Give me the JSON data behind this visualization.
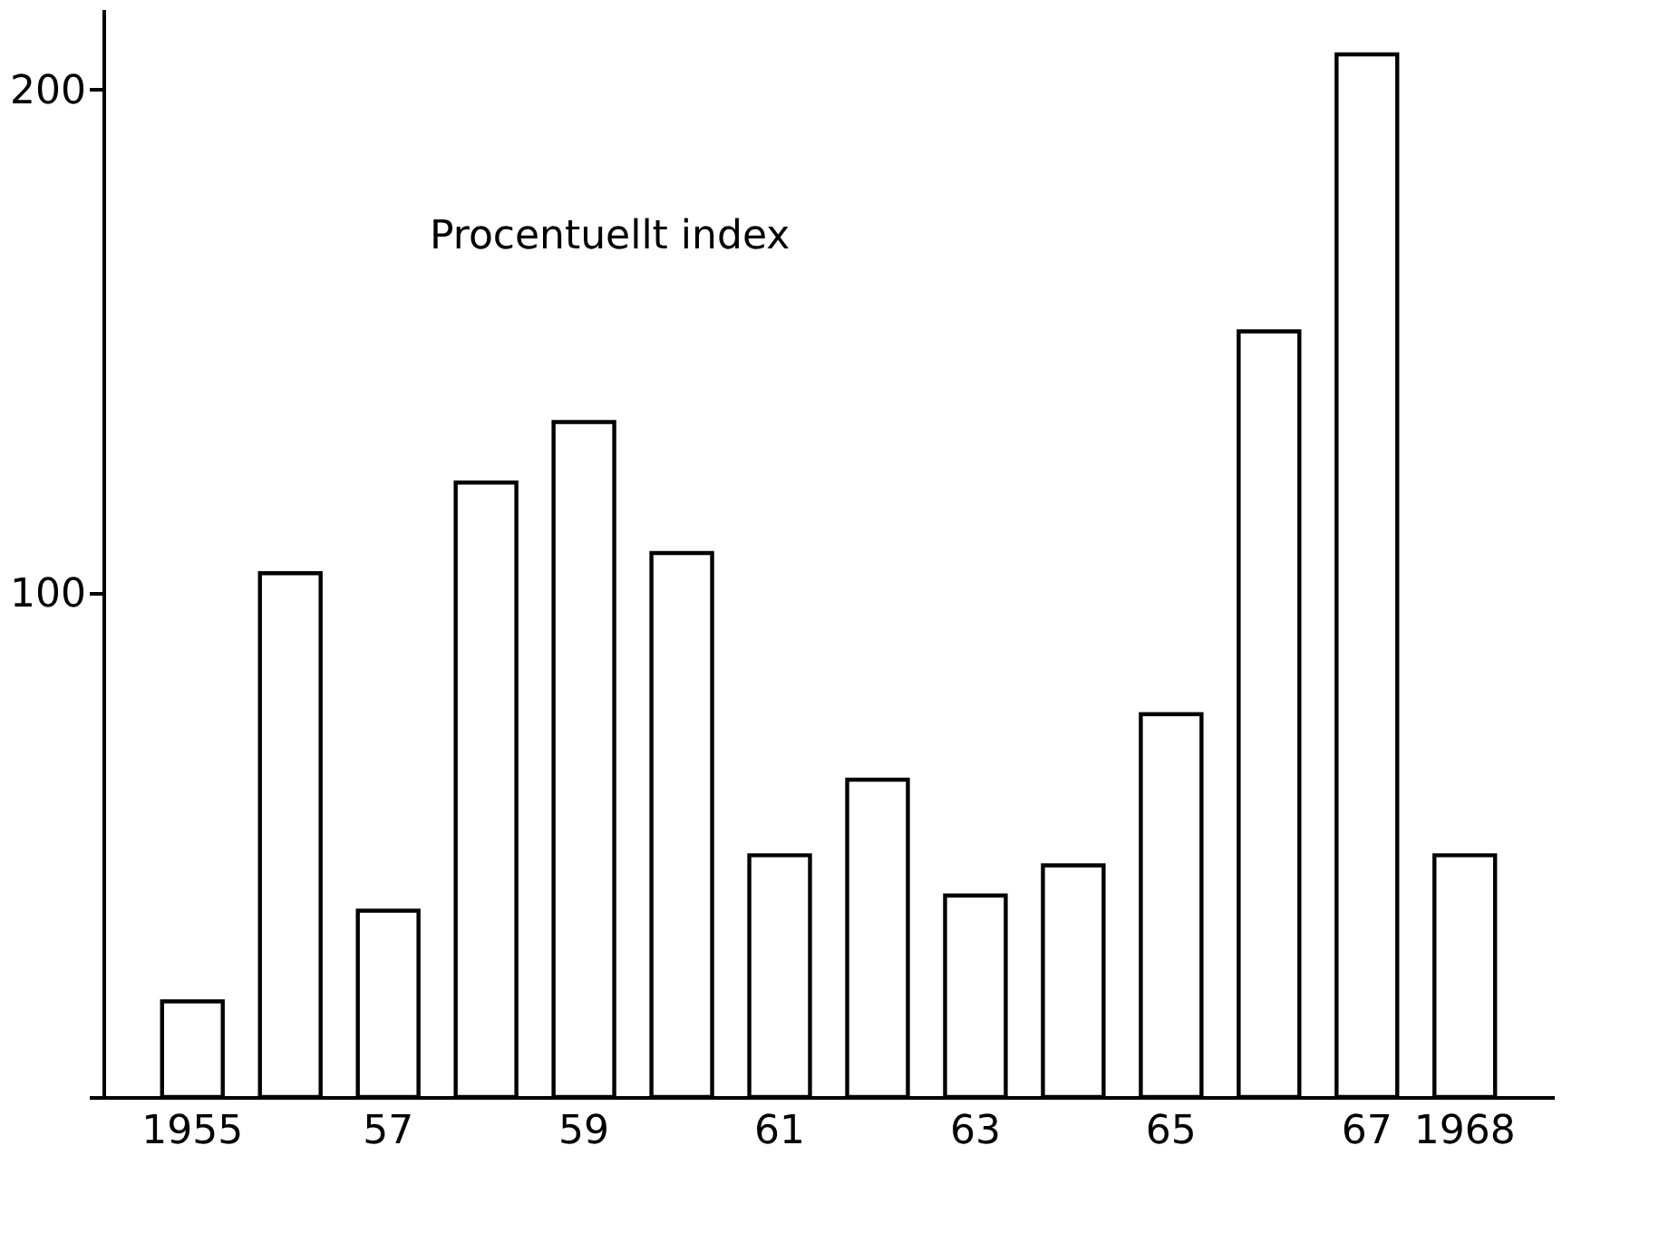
{
  "chart_data": {
    "type": "bar",
    "categories": [
      "1955",
      null,
      "57",
      null,
      "59",
      null,
      "61",
      null,
      "63",
      null,
      "65",
      null,
      "67",
      "1968"
    ],
    "values": [
      19,
      104,
      37,
      122,
      134,
      108,
      48,
      63,
      40,
      46,
      76,
      152,
      207,
      48
    ],
    "color": "#ffffff",
    "ylim": [
      0,
      216
    ],
    "yticks": [
      {
        "value": 0,
        "label": null
      },
      100,
      200
    ],
    "annotations": [
      "Procentuellt index"
    ],
    "grid": false
  }
}
